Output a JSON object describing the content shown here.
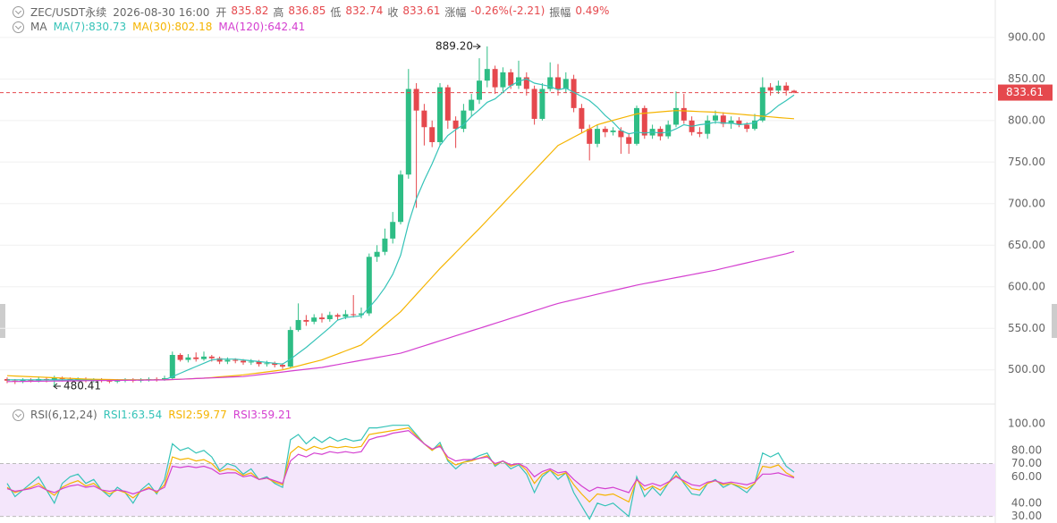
{
  "header": {
    "symbol": "ZEC/USDT永续",
    "time": "2026-08-30 16:00",
    "fields": [
      {
        "label": "开",
        "value": "835.82"
      },
      {
        "label": "高",
        "value": "836.85"
      },
      {
        "label": "低",
        "value": "832.74"
      },
      {
        "label": "收",
        "value": "833.61"
      },
      {
        "label": "涨幅",
        "value": "-0.26%(-2.21)"
      },
      {
        "label": "振幅",
        "value": "0.49%"
      }
    ]
  },
  "chart_data": [
    {
      "type": "candlestick",
      "legend_title": "MA",
      "up_color": "#2ebd85",
      "down_color": "#e5484d",
      "grid": true,
      "last_price_line": true,
      "annotations": [
        "889.20",
        "480.41"
      ],
      "ylim": [
        461,
        945
      ],
      "yticks": [
        {
          "value": 900,
          "label": "900.00"
        },
        {
          "value": 850,
          "label": "850.00"
        },
        {
          "value": 800,
          "label": "800.00"
        },
        {
          "value": 750,
          "label": "750.00"
        },
        {
          "value": 700,
          "label": "700.00"
        },
        {
          "value": 650,
          "label": "650.00"
        },
        {
          "value": 600,
          "label": "600.00"
        },
        {
          "value": 550,
          "label": "550.00"
        },
        {
          "value": 500,
          "label": "500.00"
        }
      ],
      "open": [
        489,
        487,
        486,
        488,
        487,
        489,
        488,
        490,
        489,
        488,
        489,
        487,
        488,
        487,
        486,
        487,
        488,
        487,
        488,
        489,
        488,
        490,
        518,
        512,
        515,
        513,
        516,
        514,
        510,
        512,
        511,
        509,
        510,
        507,
        508,
        506,
        504,
        548,
        560,
        558,
        563,
        561,
        566,
        564,
        567,
        566,
        568,
        636,
        642,
        658,
        678,
        735,
        838,
        812,
        792,
        774,
        840,
        800,
        790,
        812,
        825,
        848,
        862,
        840,
        858,
        842,
        852,
        838,
        802,
        838,
        852,
        838,
        850,
        815,
        790,
        772,
        790,
        786,
        788,
        780,
        772,
        815,
        782,
        790,
        781,
        795,
        815,
        800,
        786,
        784,
        800,
        806,
        796,
        800,
        795,
        790,
        800,
        840,
        836,
        842,
        835.82
      ],
      "high": [
        491,
        489,
        490,
        490,
        492,
        491,
        493,
        492,
        491,
        491,
        491,
        490,
        490,
        489,
        489,
        490,
        490,
        490,
        491,
        491,
        493,
        522,
        520,
        519,
        521,
        522,
        518,
        516,
        515,
        514,
        513,
        513,
        512,
        511,
        510,
        508,
        552,
        580,
        566,
        567,
        568,
        570,
        568,
        572,
        590,
        575,
        640,
        650,
        670,
        690,
        740,
        862,
        845,
        820,
        800,
        845,
        843,
        805,
        820,
        832,
        875,
        889.2,
        866,
        864,
        862,
        872,
        858,
        842,
        845,
        870,
        868,
        858,
        855,
        820,
        795,
        795,
        793,
        792,
        792,
        785,
        818,
        818,
        795,
        793,
        800,
        835,
        832,
        805,
        792,
        806,
        812,
        810,
        805,
        804,
        798,
        808,
        852,
        845,
        848,
        846,
        836.85
      ],
      "low": [
        484,
        483,
        484,
        485,
        485,
        485,
        480.41,
        486,
        486,
        486,
        485,
        485,
        485,
        484,
        484,
        485,
        485,
        485,
        486,
        486,
        487,
        489,
        510,
        509,
        510,
        511,
        510,
        507,
        507,
        508,
        506,
        506,
        504,
        504,
        503,
        501,
        503,
        546,
        553,
        555,
        557,
        558,
        560,
        561,
        563,
        562,
        565,
        630,
        638,
        652,
        675,
        730,
        695,
        770,
        768,
        770,
        790,
        767,
        786,
        805,
        820,
        840,
        832,
        835,
        838,
        838,
        830,
        795,
        800,
        835,
        830,
        833,
        810,
        785,
        752,
        768,
        780,
        782,
        760,
        760,
        770,
        778,
        778,
        776,
        778,
        792,
        796,
        782,
        780,
        778,
        796,
        792,
        790,
        792,
        786,
        788,
        798,
        830,
        832,
        830,
        832.74
      ],
      "close": [
        487,
        486,
        488,
        487,
        489,
        488,
        490,
        489,
        488,
        489,
        487,
        488,
        487,
        486,
        487,
        488,
        487,
        488,
        489,
        488,
        490,
        518,
        512,
        515,
        513,
        516,
        514,
        510,
        512,
        511,
        509,
        510,
        507,
        508,
        506,
        504,
        548,
        560,
        558,
        563,
        561,
        566,
        564,
        567,
        566,
        568,
        636,
        642,
        658,
        678,
        735,
        838,
        812,
        792,
        774,
        840,
        800,
        790,
        812,
        825,
        848,
        862,
        840,
        858,
        842,
        852,
        838,
        802,
        838,
        852,
        838,
        850,
        815,
        790,
        772,
        790,
        786,
        788,
        780,
        772,
        815,
        782,
        790,
        781,
        795,
        815,
        800,
        786,
        784,
        800,
        806,
        796,
        800,
        795,
        790,
        800,
        840,
        836,
        842,
        836,
        833.61
      ],
      "series": [
        {
          "name": "MA(7):830.73",
          "color": "#35c3b8",
          "values": [
            488,
            488,
            488,
            488,
            488,
            488,
            488,
            488,
            488,
            488,
            488,
            488,
            488,
            488,
            488,
            488,
            488,
            488,
            488,
            488,
            488,
            492,
            496,
            500,
            504,
            508,
            512,
            513,
            513,
            513,
            512,
            511,
            510,
            509,
            508,
            507,
            513,
            520,
            527,
            535,
            543,
            551,
            560,
            563,
            564,
            565,
            575,
            586,
            599,
            615,
            638,
            676,
            706,
            728,
            748,
            770,
            782,
            789,
            795,
            805,
            813,
            822,
            826,
            834,
            842,
            847,
            850,
            845,
            843,
            841,
            837,
            839,
            834,
            829,
            824,
            816,
            806,
            798,
            788,
            784,
            786,
            785,
            786,
            785,
            786,
            790,
            795,
            793,
            795,
            796,
            798,
            797,
            797,
            795,
            796,
            797,
            804,
            810,
            818,
            824,
            830.73
          ]
        },
        {
          "name": "MA(30):802.18",
          "color": "#f5b400",
          "values": [
            493,
            492.6,
            492.2,
            491.8,
            491.4,
            491,
            490.6,
            490.2,
            489.8,
            489.4,
            489,
            488.8,
            488.6,
            488.4,
            488.2,
            488,
            488,
            488,
            488,
            488,
            488,
            488.4,
            488.8,
            489.2,
            489.6,
            490,
            490.8,
            491.6,
            492.4,
            493.2,
            494,
            495.2,
            496.4,
            497.6,
            498.8,
            500,
            502.4,
            504.8,
            507.2,
            509.6,
            512,
            515.6,
            519.2,
            522.8,
            526.4,
            530,
            538,
            546,
            554,
            562,
            570,
            580.4,
            590.8,
            601.2,
            611.6,
            622,
            631.6,
            641.2,
            650.8,
            660.4,
            670,
            680,
            690,
            700,
            710,
            720,
            730,
            740,
            750,
            760,
            770,
            775,
            780,
            785,
            790,
            795,
            797.6,
            800.2,
            802.8,
            805.4,
            808,
            808.8,
            809.6,
            810.4,
            811.2,
            812,
            811.6,
            811.2,
            810.8,
            810.4,
            810,
            809.2,
            808.4,
            807.6,
            806.8,
            806,
            805.2,
            804.4,
            803.6,
            802.8,
            802.18
          ]
        },
        {
          "name": "MA(120):642.41",
          "color": "#d43fd0",
          "values": [
            486,
            486.1,
            486.2,
            486.3,
            486.4,
            486.5,
            486.6,
            486.7,
            486.8,
            486.9,
            487,
            487.1,
            487.2,
            487.3,
            487.4,
            487.5,
            487.6,
            487.7,
            487.8,
            487.9,
            488,
            488.4,
            488.8,
            489.2,
            489.6,
            490,
            490.4,
            490.8,
            491.2,
            491.6,
            492,
            493.1,
            494.2,
            495.3,
            496.4,
            497.5,
            498.6,
            499.7,
            500.8,
            501.9,
            503,
            504.7,
            506.4,
            508.1,
            509.8,
            511.5,
            513.2,
            514.9,
            516.6,
            518.3,
            520,
            523,
            526,
            529,
            532,
            535,
            538,
            541,
            544,
            547,
            550,
            553,
            556,
            559,
            562,
            565,
            568,
            571,
            574,
            577,
            580,
            582.2,
            584.4,
            586.6,
            588.8,
            591,
            593.2,
            595.4,
            597.6,
            599.8,
            602,
            603.8,
            605.6,
            607.4,
            609.2,
            611,
            612.8,
            614.6,
            616.4,
            618.2,
            620,
            622.2,
            624.4,
            626.6,
            628.8,
            631,
            633.2,
            635.4,
            637.6,
            639.8,
            642.41
          ]
        }
      ]
    },
    {
      "type": "line",
      "legend_title": "RSI(6,12,24)",
      "band": [
        30,
        70
      ],
      "band_color": "#f4e6fb",
      "ylim": [
        25,
        113
      ],
      "yticks": [
        {
          "value": 100,
          "label": "100.00"
        },
        {
          "value": 80,
          "label": "80.00"
        },
        {
          "value": 70,
          "label": "70.00"
        },
        {
          "value": 60,
          "label": "60.00"
        },
        {
          "value": 40,
          "label": "40.00"
        },
        {
          "value": 30,
          "label": "30.00"
        }
      ],
      "series": [
        {
          "name": "RSI1:63.54",
          "color": "#35c3b8",
          "values": [
            55,
            45,
            50,
            55,
            60,
            50,
            40,
            55,
            60,
            62,
            55,
            58,
            50,
            45,
            52,
            48,
            40,
            50,
            55,
            47,
            58,
            85,
            80,
            82,
            78,
            80,
            75,
            65,
            70,
            68,
            62,
            66,
            58,
            60,
            55,
            52,
            88,
            92,
            85,
            90,
            86,
            90,
            87,
            89,
            87,
            88,
            97,
            97,
            98,
            99,
            99,
            99,
            92,
            85,
            80,
            86,
            72,
            66,
            71,
            73,
            76,
            78,
            68,
            72,
            66,
            69,
            62,
            48,
            60,
            65,
            58,
            63,
            48,
            38,
            28,
            40,
            38,
            40,
            35,
            30,
            60,
            45,
            52,
            46,
            55,
            64,
            55,
            47,
            46,
            55,
            58,
            52,
            55,
            52,
            48,
            55,
            78,
            75,
            78,
            68,
            63.54
          ]
        },
        {
          "name": "RSI2:59.77",
          "color": "#f5b400",
          "values": [
            52,
            48,
            50,
            52,
            55,
            50,
            46,
            52,
            55,
            57,
            53,
            55,
            50,
            47,
            50,
            48,
            44,
            49,
            52,
            48,
            54,
            75,
            73,
            74,
            72,
            73,
            70,
            64,
            66,
            65,
            61,
            63,
            58,
            59,
            56,
            54,
            78,
            83,
            80,
            83,
            81,
            83,
            82,
            83,
            82,
            83,
            92,
            93,
            94,
            95,
            96,
            97,
            91,
            85,
            80,
            84,
            73,
            69,
            71,
            72,
            74,
            76,
            69,
            72,
            68,
            70,
            65,
            55,
            62,
            65,
            61,
            63,
            54,
            47,
            41,
            47,
            46,
            47,
            44,
            41,
            58,
            50,
            53,
            50,
            55,
            61,
            56,
            51,
            50,
            55,
            57,
            54,
            55,
            53,
            51,
            55,
            68,
            67,
            69,
            63,
            59.77
          ]
        },
        {
          "name": "RSI3:59.21",
          "color": "#d43fd0",
          "values": [
            51,
            49,
            50,
            51,
            53,
            50,
            48,
            51,
            53,
            54,
            52,
            53,
            50,
            49,
            50,
            49,
            47,
            49,
            51,
            49,
            52,
            68,
            67,
            68,
            67,
            68,
            66,
            62,
            63,
            63,
            60,
            61,
            58,
            59,
            57,
            55,
            72,
            77,
            75,
            78,
            77,
            79,
            78,
            79,
            78,
            79,
            88,
            90,
            91,
            93,
            94,
            95,
            90,
            85,
            81,
            83,
            75,
            72,
            73,
            73,
            74,
            75,
            70,
            72,
            69,
            70,
            67,
            60,
            64,
            66,
            63,
            64,
            58,
            53,
            49,
            52,
            51,
            52,
            50,
            48,
            58,
            53,
            55,
            53,
            56,
            60,
            57,
            54,
            53,
            56,
            57,
            55,
            56,
            55,
            54,
            56,
            62,
            62,
            63,
            61,
            59.21
          ]
        }
      ]
    }
  ]
}
